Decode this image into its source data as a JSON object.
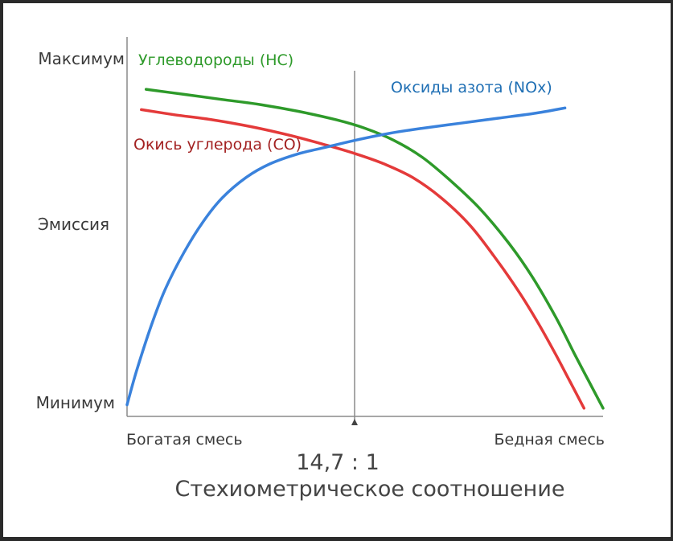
{
  "chart_data": {
    "type": "line",
    "title": "",
    "ylabel": "Эмиссия",
    "y_tick_labels": [
      "Максимум",
      "Минимум"
    ],
    "x_tick_labels": [
      "Богатая смесь",
      "Бедная смесь"
    ],
    "center_marker_label": "14,7 : 1",
    "xlabel": "Стехиометрическое соотношение",
    "x": [
      0,
      0.1,
      0.2,
      0.3,
      0.4,
      0.5,
      0.6,
      0.7,
      0.8,
      0.9,
      1.0
    ],
    "xlim": [
      0,
      1
    ],
    "ylim": [
      0,
      1
    ],
    "stoichiometric_x": 0.48,
    "grid": false,
    "series": [
      {
        "name": "Углеводороды (HC)",
        "color": "#2e9a2a",
        "x": [
          0.04,
          0.12,
          0.2,
          0.28,
          0.36,
          0.44,
          0.5,
          0.56,
          0.62,
          0.68,
          0.74,
          0.8,
          0.85,
          0.9,
          0.94,
          0.97,
          1.0
        ],
        "values": [
          0.95,
          0.935,
          0.92,
          0.905,
          0.885,
          0.86,
          0.835,
          0.8,
          0.75,
          0.68,
          0.6,
          0.5,
          0.4,
          0.28,
          0.17,
          0.09,
          0.01
        ]
      },
      {
        "name": "Окись углерода (CO)",
        "color": "#e43a3a",
        "x": [
          0.03,
          0.1,
          0.18,
          0.26,
          0.34,
          0.42,
          0.48,
          0.54,
          0.6,
          0.66,
          0.72,
          0.77,
          0.82,
          0.86,
          0.9,
          0.93,
          0.96
        ],
        "values": [
          0.89,
          0.875,
          0.86,
          0.84,
          0.815,
          0.785,
          0.76,
          0.73,
          0.69,
          0.63,
          0.55,
          0.46,
          0.36,
          0.27,
          0.17,
          0.09,
          0.01
        ]
      },
      {
        "name": "Оксиды азота (NOx)",
        "color": "#3a82dc",
        "x": [
          0.0,
          0.02,
          0.05,
          0.08,
          0.12,
          0.16,
          0.2,
          0.25,
          0.3,
          0.36,
          0.42,
          0.48,
          0.55,
          0.62,
          0.7,
          0.78,
          0.86,
          0.92
        ],
        "values": [
          0.02,
          0.12,
          0.25,
          0.36,
          0.47,
          0.56,
          0.63,
          0.69,
          0.73,
          0.76,
          0.78,
          0.8,
          0.82,
          0.835,
          0.85,
          0.865,
          0.88,
          0.895
        ]
      }
    ]
  }
}
